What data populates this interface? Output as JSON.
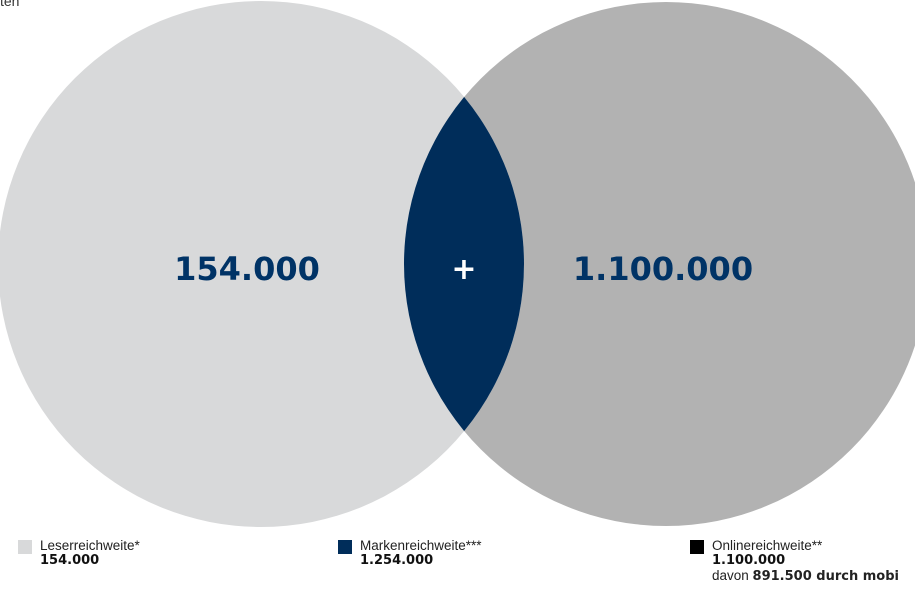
{
  "header": {
    "fragment": "ten"
  },
  "chart_data": {
    "type": "venn",
    "colors": {
      "left": "#d8d9da",
      "right": "#b2b2b2",
      "overlap": "#002d5a",
      "value_text": "#003366",
      "plus": "#ffffff",
      "online_swatch": "#000000"
    },
    "sets": [
      {
        "name": "Leserreichweite*",
        "value": 154000,
        "value_label": "154.000"
      },
      {
        "name": "Onlinereichweite**",
        "value": 1100000,
        "value_label": "1.100.000",
        "mobile_value_label": "891.500"
      }
    ],
    "overlap": {
      "symbol": "+"
    },
    "total": {
      "name": "Markenreichweite***",
      "value": 1254000,
      "value_label": "1.254.000"
    }
  },
  "legend": [
    {
      "label": "Leserreichweite*",
      "value": "154.000",
      "color": "#d8d9da"
    },
    {
      "label": "Markenreichweite***",
      "value": "1.254.000",
      "color": "#002d5a"
    },
    {
      "label": "Onlinereichweite**",
      "value": "1.100.000",
      "color": "#000000",
      "note_prefix": "davon ",
      "note_value": "891.500",
      "note_suffix": " durch mobi"
    }
  ]
}
